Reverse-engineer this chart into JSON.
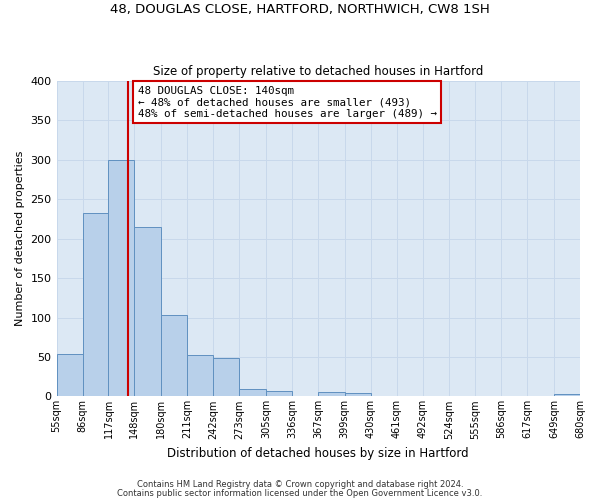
{
  "title1": "48, DOUGLAS CLOSE, HARTFORD, NORTHWICH, CW8 1SH",
  "title2": "Size of property relative to detached houses in Hartford",
  "xlabel": "Distribution of detached houses by size in Hartford",
  "ylabel": "Number of detached properties",
  "bar_edges": [
    55,
    86,
    117,
    148,
    180,
    211,
    242,
    273,
    305,
    336,
    367,
    399,
    430,
    461,
    492,
    524,
    555,
    586,
    617,
    649,
    680
  ],
  "bar_heights": [
    54,
    232,
    300,
    215,
    103,
    52,
    49,
    9,
    7,
    0,
    6,
    4,
    0,
    0,
    0,
    0,
    0,
    0,
    0,
    3
  ],
  "bar_color": "#b8d0ea",
  "bar_edge_color": "#6090c0",
  "vline_x": 140,
  "vline_color": "#cc0000",
  "annotation_box_text": "48 DOUGLAS CLOSE: 140sqm\n← 48% of detached houses are smaller (493)\n48% of semi-detached houses are larger (489) →",
  "annotation_box_color": "#cc0000",
  "ylim": [
    0,
    400
  ],
  "yticks": [
    0,
    50,
    100,
    150,
    200,
    250,
    300,
    350,
    400
  ],
  "grid_color": "#c8d8eb",
  "bg_color": "#dce8f4",
  "footnote1": "Contains HM Land Registry data © Crown copyright and database right 2024.",
  "footnote2": "Contains public sector information licensed under the Open Government Licence v3.0.",
  "tick_labels": [
    "55sqm",
    "86sqm",
    "117sqm",
    "148sqm",
    "180sqm",
    "211sqm",
    "242sqm",
    "273sqm",
    "305sqm",
    "336sqm",
    "367sqm",
    "399sqm",
    "430sqm",
    "461sqm",
    "492sqm",
    "524sqm",
    "555sqm",
    "586sqm",
    "617sqm",
    "649sqm",
    "680sqm"
  ]
}
